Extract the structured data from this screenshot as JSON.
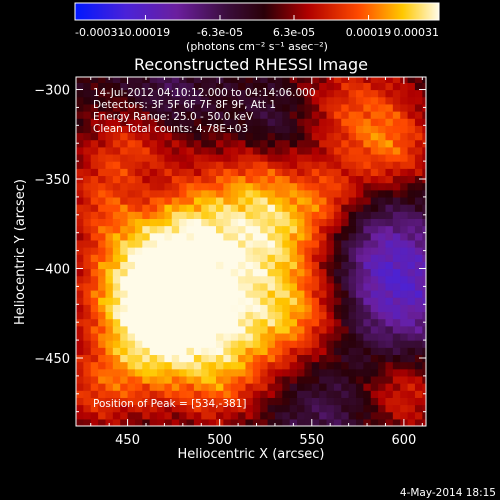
{
  "colorbar": {
    "tick_labels": [
      "-0.00031",
      "-0.00019",
      "-6.3e-05",
      "6.3e-05",
      "0.00019",
      "0.00031"
    ],
    "ticks": [
      -0.00031,
      -0.00019,
      -6.3e-05,
      6.3e-05,
      0.00019,
      0.00031
    ],
    "units_label": "(photons cm⁻² s⁻¹ asec⁻²)",
    "range": [
      -0.00031,
      0.00031
    ]
  },
  "info": {
    "line1": "14-Jul-2012 04:10:12.000 to 04:14:06.000",
    "line2": "Detectors: 3F 5F 6F 7F 8F 9F, Att 1",
    "line3": "Energy Range: 25.0 - 50.0 keV",
    "line4": "Clean    Total counts: 4.78E+03",
    "peak": "Position of Peak = [534,-381]"
  },
  "footer": {
    "date": "4-May-2014 18:15"
  },
  "colors": {
    "background": "#000000",
    "text": "#ffffff",
    "colormap": [
      "#0000ff",
      "#6a1b9a",
      "#2a0a2a",
      "#b00000",
      "#ff5000",
      "#ffd400",
      "#ffffff"
    ]
  },
  "chart_data": {
    "type": "heatmap",
    "title": "Reconstructed RHESSI Image",
    "xlabel": "Heliocentric X (arcsec)",
    "ylabel": "Heliocentric Y (arcsec)",
    "xlim": [
      422,
      612
    ],
    "ylim": [
      -488,
      -293
    ],
    "xticks": [
      450,
      500,
      550,
      600
    ],
    "yticks": [
      -300,
      -350,
      -400,
      -450
    ],
    "xtick_labels": [
      "450",
      "500",
      "550",
      "600"
    ],
    "ytick_labels": [
      "−300",
      "−350",
      "−400",
      "−450"
    ],
    "peak": [
      534,
      -381
    ],
    "value_range": [
      -0.00031,
      0.00031
    ]
  }
}
